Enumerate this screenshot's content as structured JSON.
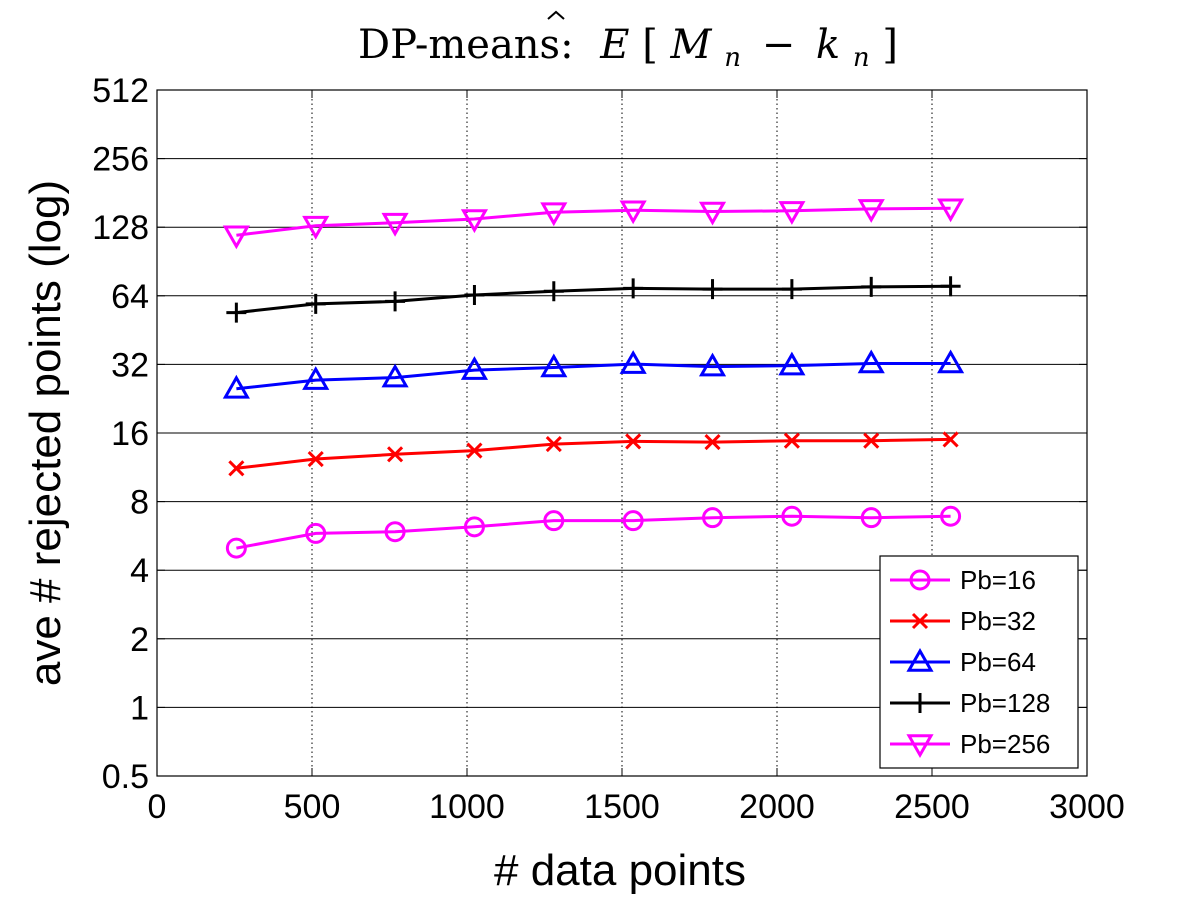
{
  "chart_data": {
    "type": "line",
    "title": "DP-means: Ê[M_n − k_n]",
    "title_parts": {
      "prefix": "DP-means:",
      "estimator": "E",
      "bracket_open": "[",
      "m": "M",
      "m_sub": "n",
      "minus": "−",
      "k": "k",
      "k_sub": "n",
      "bracket_close": "]"
    },
    "xlabel": "# data points",
    "ylabel": "ave # rejected points (log)",
    "xlim": [
      0,
      3000
    ],
    "ylim": [
      0.5,
      512
    ],
    "yscale": "log2",
    "xticks": [
      0,
      500,
      1000,
      1500,
      2000,
      2500,
      3000
    ],
    "xtick_labels": [
      "0",
      "500",
      "1000",
      "1500",
      "2000",
      "2500",
      "3000"
    ],
    "yticks": [
      0.5,
      1,
      2,
      4,
      8,
      16,
      32,
      64,
      128,
      256,
      512
    ],
    "ytick_labels": [
      "0.5",
      "1",
      "2",
      "4",
      "8",
      "16",
      "32",
      "64",
      "128",
      "256",
      "512"
    ],
    "x": [
      256,
      512,
      768,
      1024,
      1280,
      1536,
      1792,
      2048,
      2304,
      2560
    ],
    "series": [
      {
        "name": "Pb=16",
        "color": "#ff00ff",
        "marker": "circle",
        "values": [
          5.0,
          5.8,
          5.9,
          6.2,
          6.6,
          6.6,
          6.8,
          6.9,
          6.8,
          6.9
        ]
      },
      {
        "name": "Pb=32",
        "color": "#ff0000",
        "marker": "x",
        "values": [
          11.2,
          12.3,
          12.9,
          13.4,
          14.3,
          14.7,
          14.6,
          14.8,
          14.8,
          15.0
        ]
      },
      {
        "name": "Pb=64",
        "color": "#0000ff",
        "marker": "triangle-up",
        "values": [
          25.0,
          27.3,
          28.0,
          30.2,
          31.0,
          32.1,
          31.3,
          31.6,
          32.3,
          32.3
        ]
      },
      {
        "name": "Pb=128",
        "color": "#000000",
        "marker": "plus",
        "values": [
          54,
          59,
          60.5,
          64.5,
          67,
          69,
          68.5,
          68.5,
          70,
          70.5
        ]
      },
      {
        "name": "Pb=256",
        "color": "#ff00ff",
        "marker": "triangle-down",
        "values": [
          118,
          130,
          134,
          139,
          149,
          152,
          150,
          151,
          154,
          155
        ]
      }
    ],
    "grid": {
      "x": "dotted",
      "y": "solid"
    },
    "legend_position": "bottom-right"
  }
}
